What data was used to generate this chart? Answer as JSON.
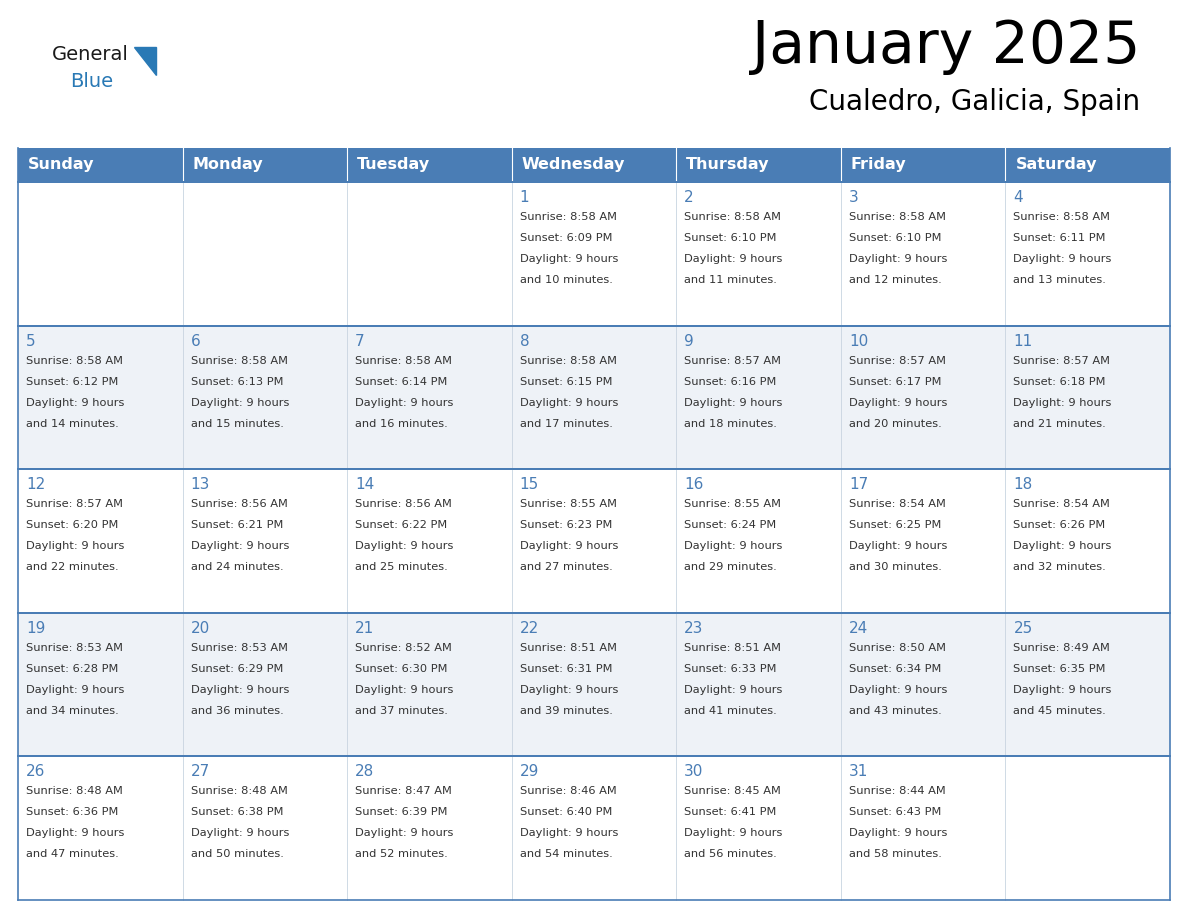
{
  "title": "January 2025",
  "subtitle": "Cualedro, Galicia, Spain",
  "days_of_week": [
    "Sunday",
    "Monday",
    "Tuesday",
    "Wednesday",
    "Thursday",
    "Friday",
    "Saturday"
  ],
  "header_bg": "#4a7db5",
  "header_text": "#ffffff",
  "cell_bg_even": "#ffffff",
  "cell_bg_odd": "#eef2f7",
  "row_border_color": "#4a7db5",
  "vert_border_color": "#c8d4e0",
  "day_num_color": "#4a7db5",
  "cell_text_color": "#333333",
  "title_color": "#000000",
  "subtitle_color": "#000000",
  "general_color": "#1a1a1a",
  "blue_color": "#2979b5",
  "calendar_data": [
    [
      {
        "day": null,
        "info": ""
      },
      {
        "day": null,
        "info": ""
      },
      {
        "day": null,
        "info": ""
      },
      {
        "day": 1,
        "info": "Sunrise: 8:58 AM\nSunset: 6:09 PM\nDaylight: 9 hours\nand 10 minutes."
      },
      {
        "day": 2,
        "info": "Sunrise: 8:58 AM\nSunset: 6:10 PM\nDaylight: 9 hours\nand 11 minutes."
      },
      {
        "day": 3,
        "info": "Sunrise: 8:58 AM\nSunset: 6:10 PM\nDaylight: 9 hours\nand 12 minutes."
      },
      {
        "day": 4,
        "info": "Sunrise: 8:58 AM\nSunset: 6:11 PM\nDaylight: 9 hours\nand 13 minutes."
      }
    ],
    [
      {
        "day": 5,
        "info": "Sunrise: 8:58 AM\nSunset: 6:12 PM\nDaylight: 9 hours\nand 14 minutes."
      },
      {
        "day": 6,
        "info": "Sunrise: 8:58 AM\nSunset: 6:13 PM\nDaylight: 9 hours\nand 15 minutes."
      },
      {
        "day": 7,
        "info": "Sunrise: 8:58 AM\nSunset: 6:14 PM\nDaylight: 9 hours\nand 16 minutes."
      },
      {
        "day": 8,
        "info": "Sunrise: 8:58 AM\nSunset: 6:15 PM\nDaylight: 9 hours\nand 17 minutes."
      },
      {
        "day": 9,
        "info": "Sunrise: 8:57 AM\nSunset: 6:16 PM\nDaylight: 9 hours\nand 18 minutes."
      },
      {
        "day": 10,
        "info": "Sunrise: 8:57 AM\nSunset: 6:17 PM\nDaylight: 9 hours\nand 20 minutes."
      },
      {
        "day": 11,
        "info": "Sunrise: 8:57 AM\nSunset: 6:18 PM\nDaylight: 9 hours\nand 21 minutes."
      }
    ],
    [
      {
        "day": 12,
        "info": "Sunrise: 8:57 AM\nSunset: 6:20 PM\nDaylight: 9 hours\nand 22 minutes."
      },
      {
        "day": 13,
        "info": "Sunrise: 8:56 AM\nSunset: 6:21 PM\nDaylight: 9 hours\nand 24 minutes."
      },
      {
        "day": 14,
        "info": "Sunrise: 8:56 AM\nSunset: 6:22 PM\nDaylight: 9 hours\nand 25 minutes."
      },
      {
        "day": 15,
        "info": "Sunrise: 8:55 AM\nSunset: 6:23 PM\nDaylight: 9 hours\nand 27 minutes."
      },
      {
        "day": 16,
        "info": "Sunrise: 8:55 AM\nSunset: 6:24 PM\nDaylight: 9 hours\nand 29 minutes."
      },
      {
        "day": 17,
        "info": "Sunrise: 8:54 AM\nSunset: 6:25 PM\nDaylight: 9 hours\nand 30 minutes."
      },
      {
        "day": 18,
        "info": "Sunrise: 8:54 AM\nSunset: 6:26 PM\nDaylight: 9 hours\nand 32 minutes."
      }
    ],
    [
      {
        "day": 19,
        "info": "Sunrise: 8:53 AM\nSunset: 6:28 PM\nDaylight: 9 hours\nand 34 minutes."
      },
      {
        "day": 20,
        "info": "Sunrise: 8:53 AM\nSunset: 6:29 PM\nDaylight: 9 hours\nand 36 minutes."
      },
      {
        "day": 21,
        "info": "Sunrise: 8:52 AM\nSunset: 6:30 PM\nDaylight: 9 hours\nand 37 minutes."
      },
      {
        "day": 22,
        "info": "Sunrise: 8:51 AM\nSunset: 6:31 PM\nDaylight: 9 hours\nand 39 minutes."
      },
      {
        "day": 23,
        "info": "Sunrise: 8:51 AM\nSunset: 6:33 PM\nDaylight: 9 hours\nand 41 minutes."
      },
      {
        "day": 24,
        "info": "Sunrise: 8:50 AM\nSunset: 6:34 PM\nDaylight: 9 hours\nand 43 minutes."
      },
      {
        "day": 25,
        "info": "Sunrise: 8:49 AM\nSunset: 6:35 PM\nDaylight: 9 hours\nand 45 minutes."
      }
    ],
    [
      {
        "day": 26,
        "info": "Sunrise: 8:48 AM\nSunset: 6:36 PM\nDaylight: 9 hours\nand 47 minutes."
      },
      {
        "day": 27,
        "info": "Sunrise: 8:48 AM\nSunset: 6:38 PM\nDaylight: 9 hours\nand 50 minutes."
      },
      {
        "day": 28,
        "info": "Sunrise: 8:47 AM\nSunset: 6:39 PM\nDaylight: 9 hours\nand 52 minutes."
      },
      {
        "day": 29,
        "info": "Sunrise: 8:46 AM\nSunset: 6:40 PM\nDaylight: 9 hours\nand 54 minutes."
      },
      {
        "day": 30,
        "info": "Sunrise: 8:45 AM\nSunset: 6:41 PM\nDaylight: 9 hours\nand 56 minutes."
      },
      {
        "day": 31,
        "info": "Sunrise: 8:44 AM\nSunset: 6:43 PM\nDaylight: 9 hours\nand 58 minutes."
      },
      {
        "day": null,
        "info": ""
      }
    ]
  ]
}
